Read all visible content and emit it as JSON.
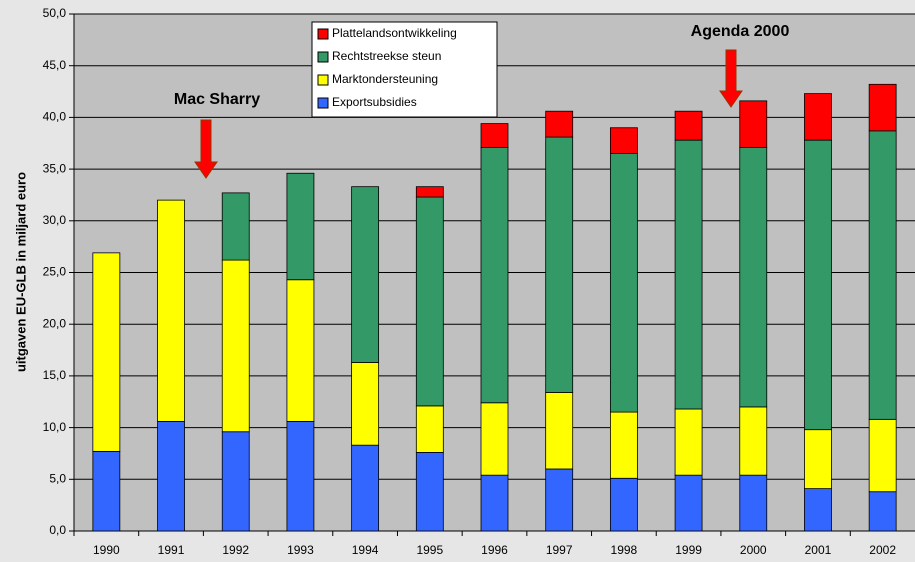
{
  "chart_data": {
    "type": "stacked_bar",
    "y_label": "uitgaven EU-GLB in miljard euro",
    "annotations": [
      "Mac Sharry",
      "Agenda 2000"
    ],
    "categories": [
      "1990",
      "1991",
      "1992",
      "1993",
      "1994",
      "1995",
      "1996",
      "1997",
      "1998",
      "1999",
      "2000",
      "2001",
      "2002"
    ],
    "series": [
      {
        "name": "Exportsubsidies",
        "color": "#3366ff",
        "values": [
          7.7,
          10.6,
          9.6,
          10.6,
          8.3,
          7.6,
          5.4,
          6.0,
          5.1,
          5.4,
          5.4,
          4.1,
          3.8
        ]
      },
      {
        "name": "Marktondersteuning",
        "color": "#ffff00",
        "values": [
          19.2,
          21.4,
          16.6,
          13.7,
          8.0,
          4.5,
          7.0,
          7.4,
          6.4,
          6.4,
          6.6,
          5.7,
          7.0
        ]
      },
      {
        "name": "Rechtstreekse steun",
        "color": "#339966",
        "values": [
          0,
          0,
          6.5,
          10.3,
          17.0,
          20.2,
          24.7,
          24.7,
          25.0,
          26.0,
          25.1,
          28.0,
          27.9
        ]
      },
      {
        "name": "Plattelandsontwikkeling",
        "color": "#ff0000",
        "values": [
          0,
          0,
          0,
          0,
          0,
          1.0,
          2.3,
          2.5,
          2.5,
          2.8,
          4.5,
          4.5,
          4.5
        ]
      }
    ],
    "ylim": [
      0,
      50
    ],
    "yticks": [
      {
        "value": 0,
        "label": "0,0"
      },
      {
        "value": 5,
        "label": "5,0"
      },
      {
        "value": 10,
        "label": "10,0"
      },
      {
        "value": 15,
        "label": "15,0"
      },
      {
        "value": 20,
        "label": "20,0"
      },
      {
        "value": 25,
        "label": "25,0"
      },
      {
        "value": 30,
        "label": "30,0"
      },
      {
        "value": 35,
        "label": "35,0"
      },
      {
        "value": 40,
        "label": "40,0"
      },
      {
        "value": 45,
        "label": "45,0"
      },
      {
        "value": 50,
        "label": "50,0"
      }
    ],
    "grid": true
  }
}
